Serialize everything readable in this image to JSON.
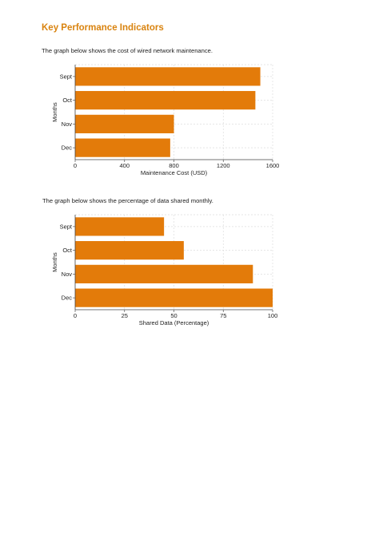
{
  "heading": "Key Performance Indicators",
  "caption1": "The graph below shows the cost of wired network maintenance.",
  "caption2": "The graph below shows the percentage of data shared monthly.",
  "accent_color": "#d9830f",
  "bar_color": "#e37b0a",
  "chart_data": [
    {
      "type": "bar",
      "orientation": "horizontal",
      "categories": [
        "Sept",
        "Oct",
        "Nov",
        "Dec"
      ],
      "values": [
        1500,
        1460,
        800,
        770
      ],
      "xlabel": "Maintenance Cost (USD)",
      "ylabel": "Months",
      "xlim": [
        0,
        1600
      ],
      "xticks": [
        "0",
        "400",
        "800",
        "1200",
        "1600"
      ],
      "grid": true
    },
    {
      "type": "bar",
      "orientation": "horizontal",
      "categories": [
        "Sept",
        "Oct",
        "Nov",
        "Dec"
      ],
      "values": [
        45,
        55,
        90,
        100
      ],
      "xlabel": "Shared Data (Percentage)",
      "ylabel": "Months",
      "xlim": [
        0,
        100
      ],
      "xticks": [
        "0",
        "25",
        "50",
        "75",
        "100"
      ],
      "grid": true
    }
  ]
}
